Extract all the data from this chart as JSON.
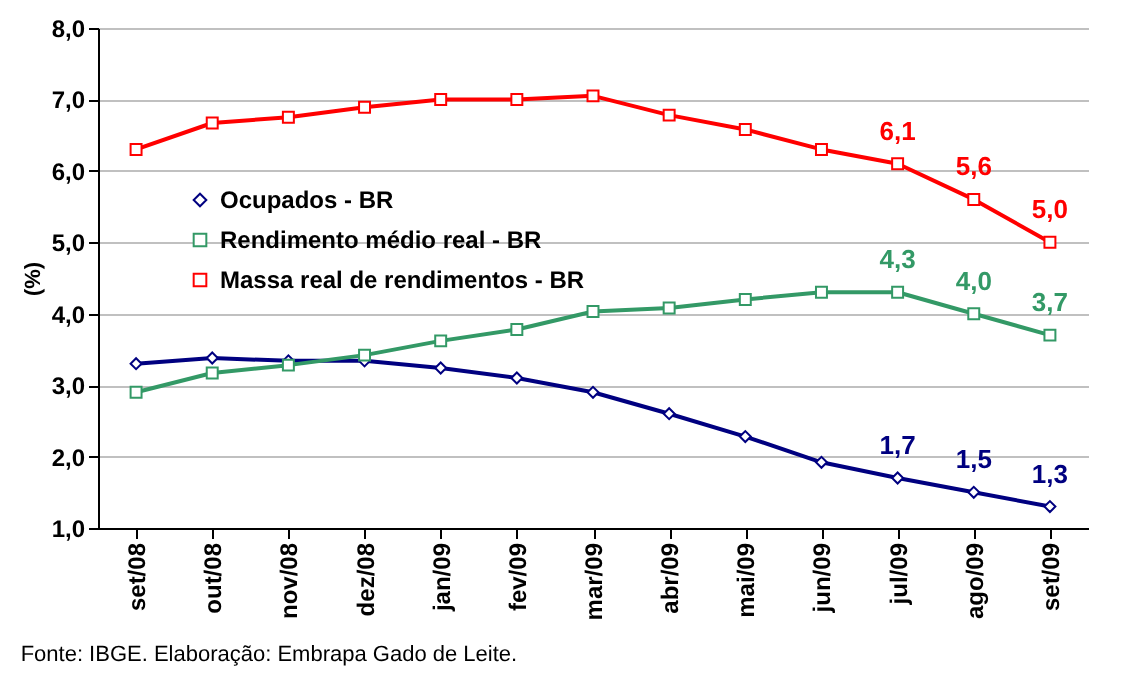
{
  "chart_data": {
    "type": "line",
    "ylabel": "(%)",
    "categories": [
      "set/08",
      "out/08",
      "nov/08",
      "dez/08",
      "jan/09",
      "fev/09",
      "mar/09",
      "abr/09",
      "mai/09",
      "jun/09",
      "jul/09",
      "ago/09",
      "set/09"
    ],
    "series": [
      {
        "name": "Ocupados - BR",
        "color": "#000080",
        "marker": "diamond",
        "values": [
          3.3,
          3.38,
          3.34,
          3.34,
          3.24,
          3.1,
          2.9,
          2.6,
          2.28,
          1.92,
          1.7,
          1.5,
          1.3
        ],
        "value_labels": [
          null,
          null,
          null,
          null,
          null,
          null,
          null,
          null,
          null,
          null,
          "1,7",
          "1,5",
          "1,3"
        ]
      },
      {
        "name": "Rendimento médio real - BR",
        "color": "#339966",
        "marker": "square",
        "values": [
          2.9,
          3.17,
          3.28,
          3.42,
          3.62,
          3.78,
          4.03,
          4.08,
          4.2,
          4.3,
          4.3,
          4.0,
          3.7
        ],
        "value_labels": [
          null,
          null,
          null,
          null,
          null,
          null,
          null,
          null,
          null,
          null,
          "4,3",
          "4,0",
          "3,7"
        ]
      },
      {
        "name": "Massa real de rendimentos - BR",
        "color": "#ff0000",
        "marker": "square",
        "values": [
          6.3,
          6.67,
          6.75,
          6.89,
          7.0,
          7.0,
          7.05,
          6.78,
          6.58,
          6.3,
          6.1,
          5.6,
          5.0
        ],
        "value_labels": [
          null,
          null,
          null,
          null,
          null,
          null,
          null,
          null,
          null,
          null,
          "6,1",
          "5,6",
          "5,0"
        ]
      }
    ],
    "ylim": [
      1,
      8
    ],
    "yticks": [
      {
        "value": 1,
        "label": "1,0"
      },
      {
        "value": 2,
        "label": "2,0"
      },
      {
        "value": 3,
        "label": "3,0"
      },
      {
        "value": 4,
        "label": "4,0"
      },
      {
        "value": 5,
        "label": "5,0"
      },
      {
        "value": 6,
        "label": "6,0"
      },
      {
        "value": 7,
        "label": "7,0"
      },
      {
        "value": 8,
        "label": "8,0"
      }
    ],
    "grid": "y",
    "legend": "left",
    "annotations": [
      "Fonte: IBGE. Elaboração: Embrapa Gado de Leite."
    ]
  }
}
